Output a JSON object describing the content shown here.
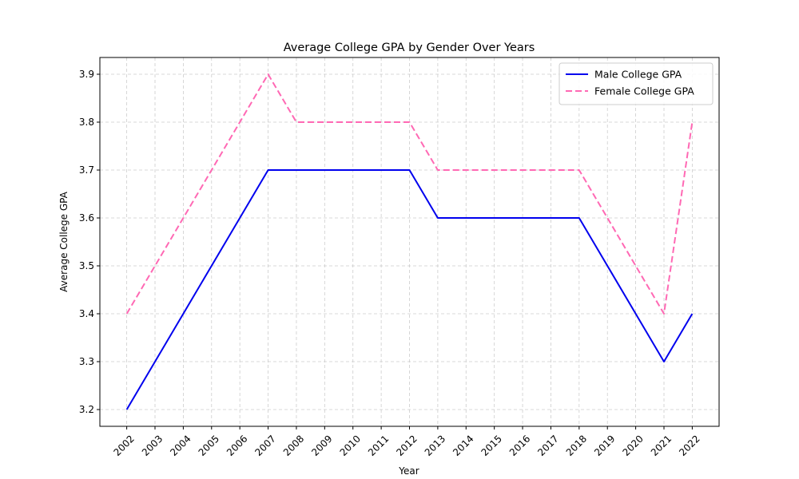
{
  "chart_data": {
    "type": "line",
    "title": "Average College GPA by Gender Over Years",
    "xlabel": "Year",
    "ylabel": "Average College GPA",
    "x": [
      2002,
      2003,
      2004,
      2005,
      2006,
      2007,
      2008,
      2009,
      2010,
      2011,
      2012,
      2013,
      2014,
      2015,
      2016,
      2017,
      2018,
      2019,
      2020,
      2021,
      2022
    ],
    "x_tick_labels": [
      "2002",
      "2003",
      "2004",
      "2005",
      "2006",
      "2007",
      "2008",
      "2009",
      "2010",
      "2011",
      "2012",
      "2013",
      "2014",
      "2015",
      "2016",
      "2017",
      "2018",
      "2019",
      "2020",
      "2021",
      "2022"
    ],
    "yticks": [
      3.2,
      3.3,
      3.4,
      3.5,
      3.6,
      3.7,
      3.8,
      3.9
    ],
    "y_tick_labels": [
      "3.2",
      "3.3",
      "3.4",
      "3.5",
      "3.6",
      "3.7",
      "3.8",
      "3.9"
    ],
    "xlim": [
      2001.05,
      2022.95
    ],
    "ylim": [
      3.165,
      3.935
    ],
    "grid": true,
    "legend_position": "top-right",
    "series": [
      {
        "name": "Male College GPA",
        "color": "#0000ee",
        "line_style": "solid",
        "values": [
          3.2,
          3.3,
          3.4,
          3.5,
          3.6,
          3.7,
          3.7,
          3.7,
          3.7,
          3.7,
          3.7,
          3.6,
          3.6,
          3.6,
          3.6,
          3.6,
          3.6,
          3.5,
          3.4,
          3.3,
          3.4
        ]
      },
      {
        "name": "Female College GPA",
        "color": "#ff69b4",
        "line_style": "dashed",
        "values": [
          3.4,
          3.5,
          3.6,
          3.7,
          3.8,
          3.9,
          3.8,
          3.8,
          3.8,
          3.8,
          3.8,
          3.7,
          3.7,
          3.7,
          3.7,
          3.7,
          3.7,
          3.6,
          3.5,
          3.4,
          3.8
        ]
      }
    ]
  }
}
